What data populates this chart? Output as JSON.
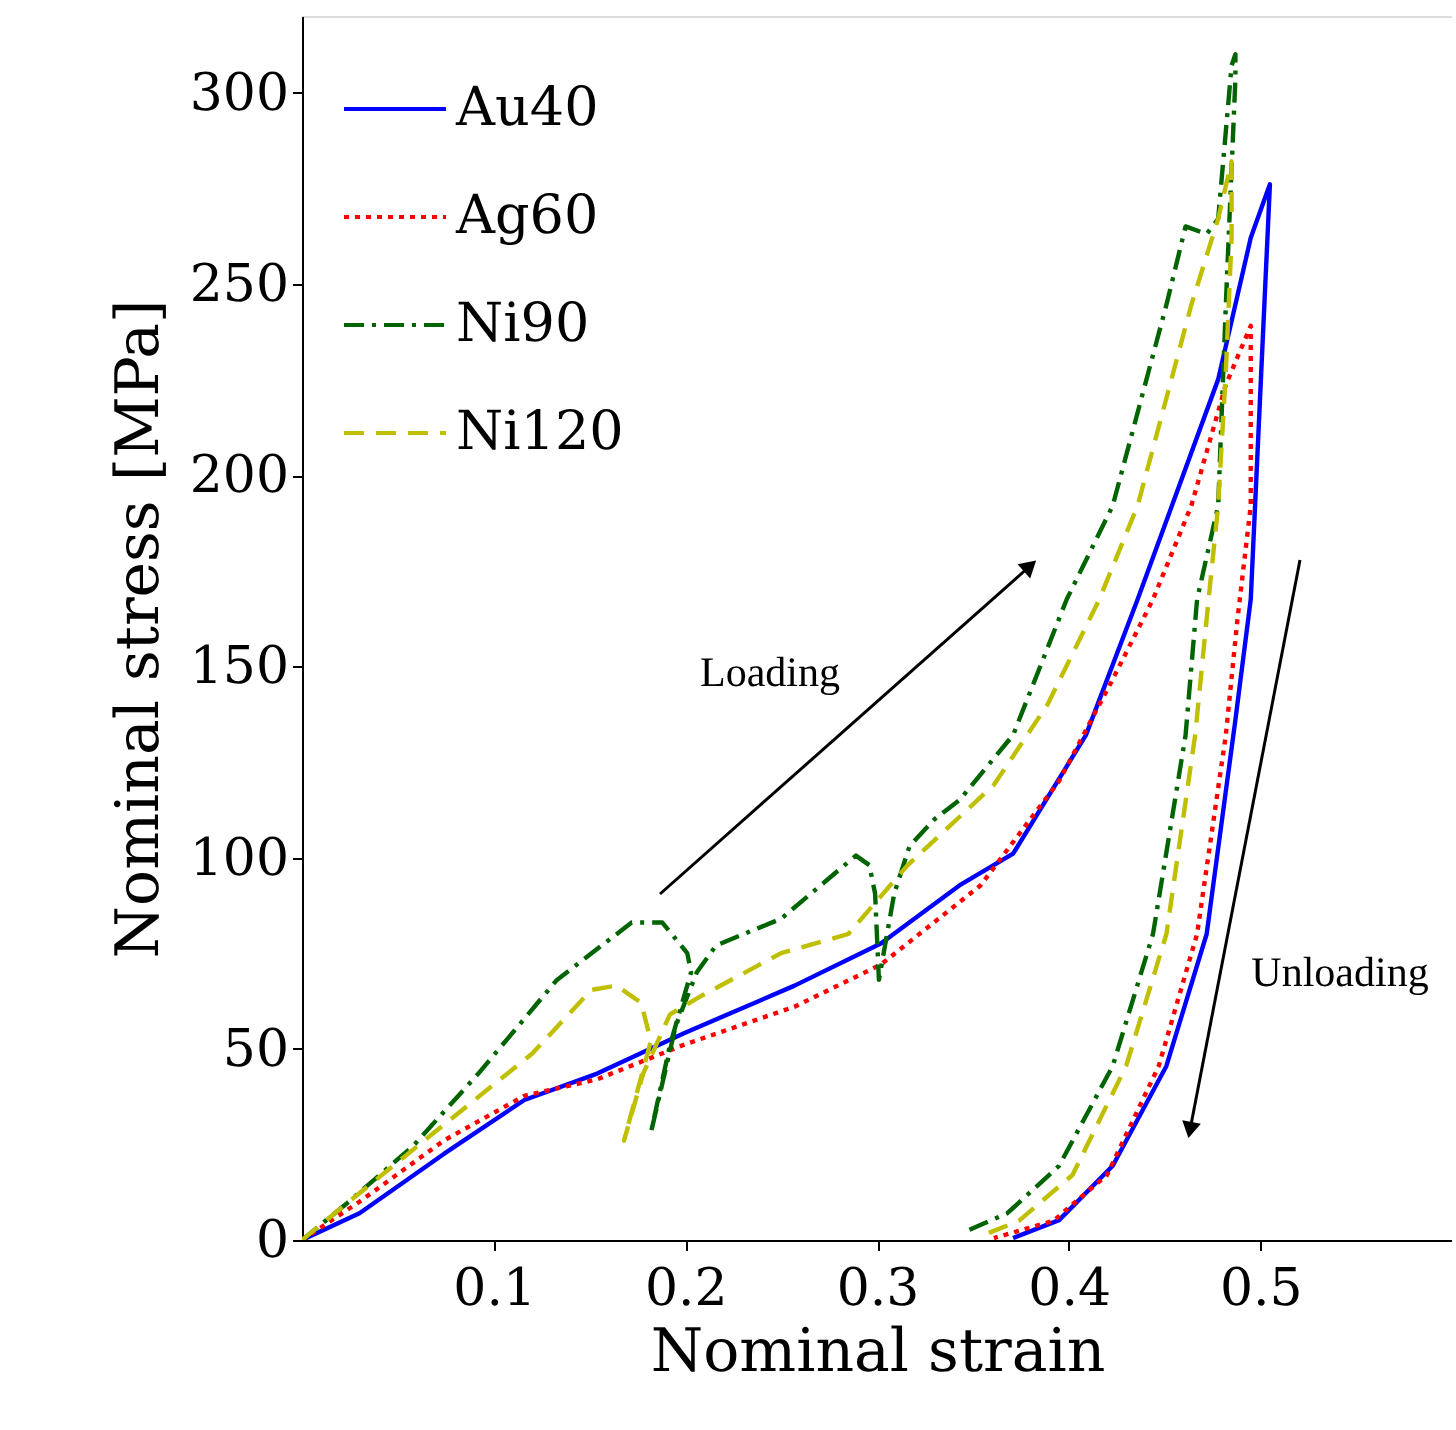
{
  "chart_data": {
    "type": "line",
    "xlabel": "Nominal strain",
    "ylabel": "Nominal stress [MPa]",
    "xlim": [
      0,
      0.6
    ],
    "ylim": [
      0,
      320
    ],
    "xticks": [
      0.1,
      0.2,
      0.3,
      0.4,
      0.5
    ],
    "yticks": [
      0,
      50,
      100,
      150,
      200,
      250,
      300
    ],
    "grid": false,
    "legend": "top left",
    "series": [
      {
        "name": "Au40",
        "color": "#0000ff",
        "line_style": "solid",
        "x": [
          0.0,
          0.03,
          0.074,
          0.116,
          0.154,
          0.199,
          0.257,
          0.302,
          0.343,
          0.371,
          0.409,
          0.436,
          0.478,
          0.495,
          0.505,
          0.495,
          0.487,
          0.472,
          0.451,
          0.423,
          0.395,
          0.371
        ],
        "values": [
          0,
          7,
          22.5,
          36.6,
          43.5,
          54,
          66.5,
          77.5,
          92.7,
          101,
          132,
          167.5,
          225,
          262,
          276,
          167.5,
          136,
          80,
          45.5,
          19.4,
          5.2,
          0.5
        ]
      },
      {
        "name": "Ag60",
        "color": "#ff0000",
        "line_style": "dotted",
        "x": [
          0.0,
          0.03,
          0.074,
          0.116,
          0.154,
          0.199,
          0.257,
          0.302,
          0.354,
          0.395,
          0.423,
          0.444,
          0.464,
          0.482,
          0.495,
          0.495,
          0.488,
          0.482,
          0.467,
          0.447,
          0.42,
          0.392,
          0.361
        ],
        "values": [
          0,
          10,
          26,
          37.7,
          42,
          51,
          61,
          72,
          92.7,
          120,
          146.6,
          167.5,
          192,
          223.6,
          239,
          192,
          162,
          132,
          80,
          45.5,
          17,
          5,
          0.5
        ]
      },
      {
        "name": "Ni90",
        "color": "#006400",
        "line_style": "dashdot",
        "x": [
          0.0,
          0.023,
          0.058,
          0.092,
          0.133,
          0.172,
          0.188,
          0.201,
          0.203,
          0.192,
          0.182,
          0.195,
          0.206,
          0.216,
          0.25,
          0.289,
          0.296,
          0.299,
          0.301,
          0.309,
          0.317,
          0.33,
          0.343,
          0.371,
          0.399,
          0.423,
          0.451,
          0.461,
          0.472,
          0.478,
          0.485,
          0.487,
          0.487,
          0.482,
          0.478,
          0.467,
          0.461,
          0.444,
          0.423,
          0.395,
          0.368,
          0.345
        ],
        "values": [
          0,
          9.4,
          24.6,
          43.5,
          68,
          83,
          83,
          75,
          70,
          51,
          28,
          56,
          70,
          77,
          84,
          100.5,
          98,
          90.6,
          68,
          90.6,
          103,
          110,
          115,
          132,
          167.5,
          192,
          244.5,
          265,
          263,
          267,
          307,
          310,
          303.7,
          244.5,
          192,
          167.5,
          132,
          80,
          45.5,
          19.4,
          7,
          2
        ]
      },
      {
        "name": "Ni120",
        "color": "#bfbf00",
        "line_style": "dashed",
        "x": [
          0.0,
          0.023,
          0.068,
          0.12,
          0.151,
          0.164,
          0.177,
          0.182,
          0.168,
          0.178,
          0.192,
          0.209,
          0.25,
          0.285,
          0.316,
          0.361,
          0.389,
          0.416,
          0.436,
          0.464,
          0.478,
          0.485,
          0.485,
          0.482,
          0.478,
          0.473,
          0.466,
          0.451,
          0.43,
          0.402,
          0.374,
          0.354
        ],
        "values": [
          0,
          9.4,
          27.7,
          48.7,
          65.4,
          66.5,
          62,
          52,
          26,
          43.5,
          59,
          64,
          75,
          80,
          98,
          119,
          140,
          167.5,
          192,
          244.5,
          267,
          282,
          262,
          227,
          192,
          167.5,
          132,
          80,
          45.5,
          17,
          5,
          1
        ]
      }
    ],
    "annotations": [
      "Loading",
      "Unloading"
    ]
  }
}
